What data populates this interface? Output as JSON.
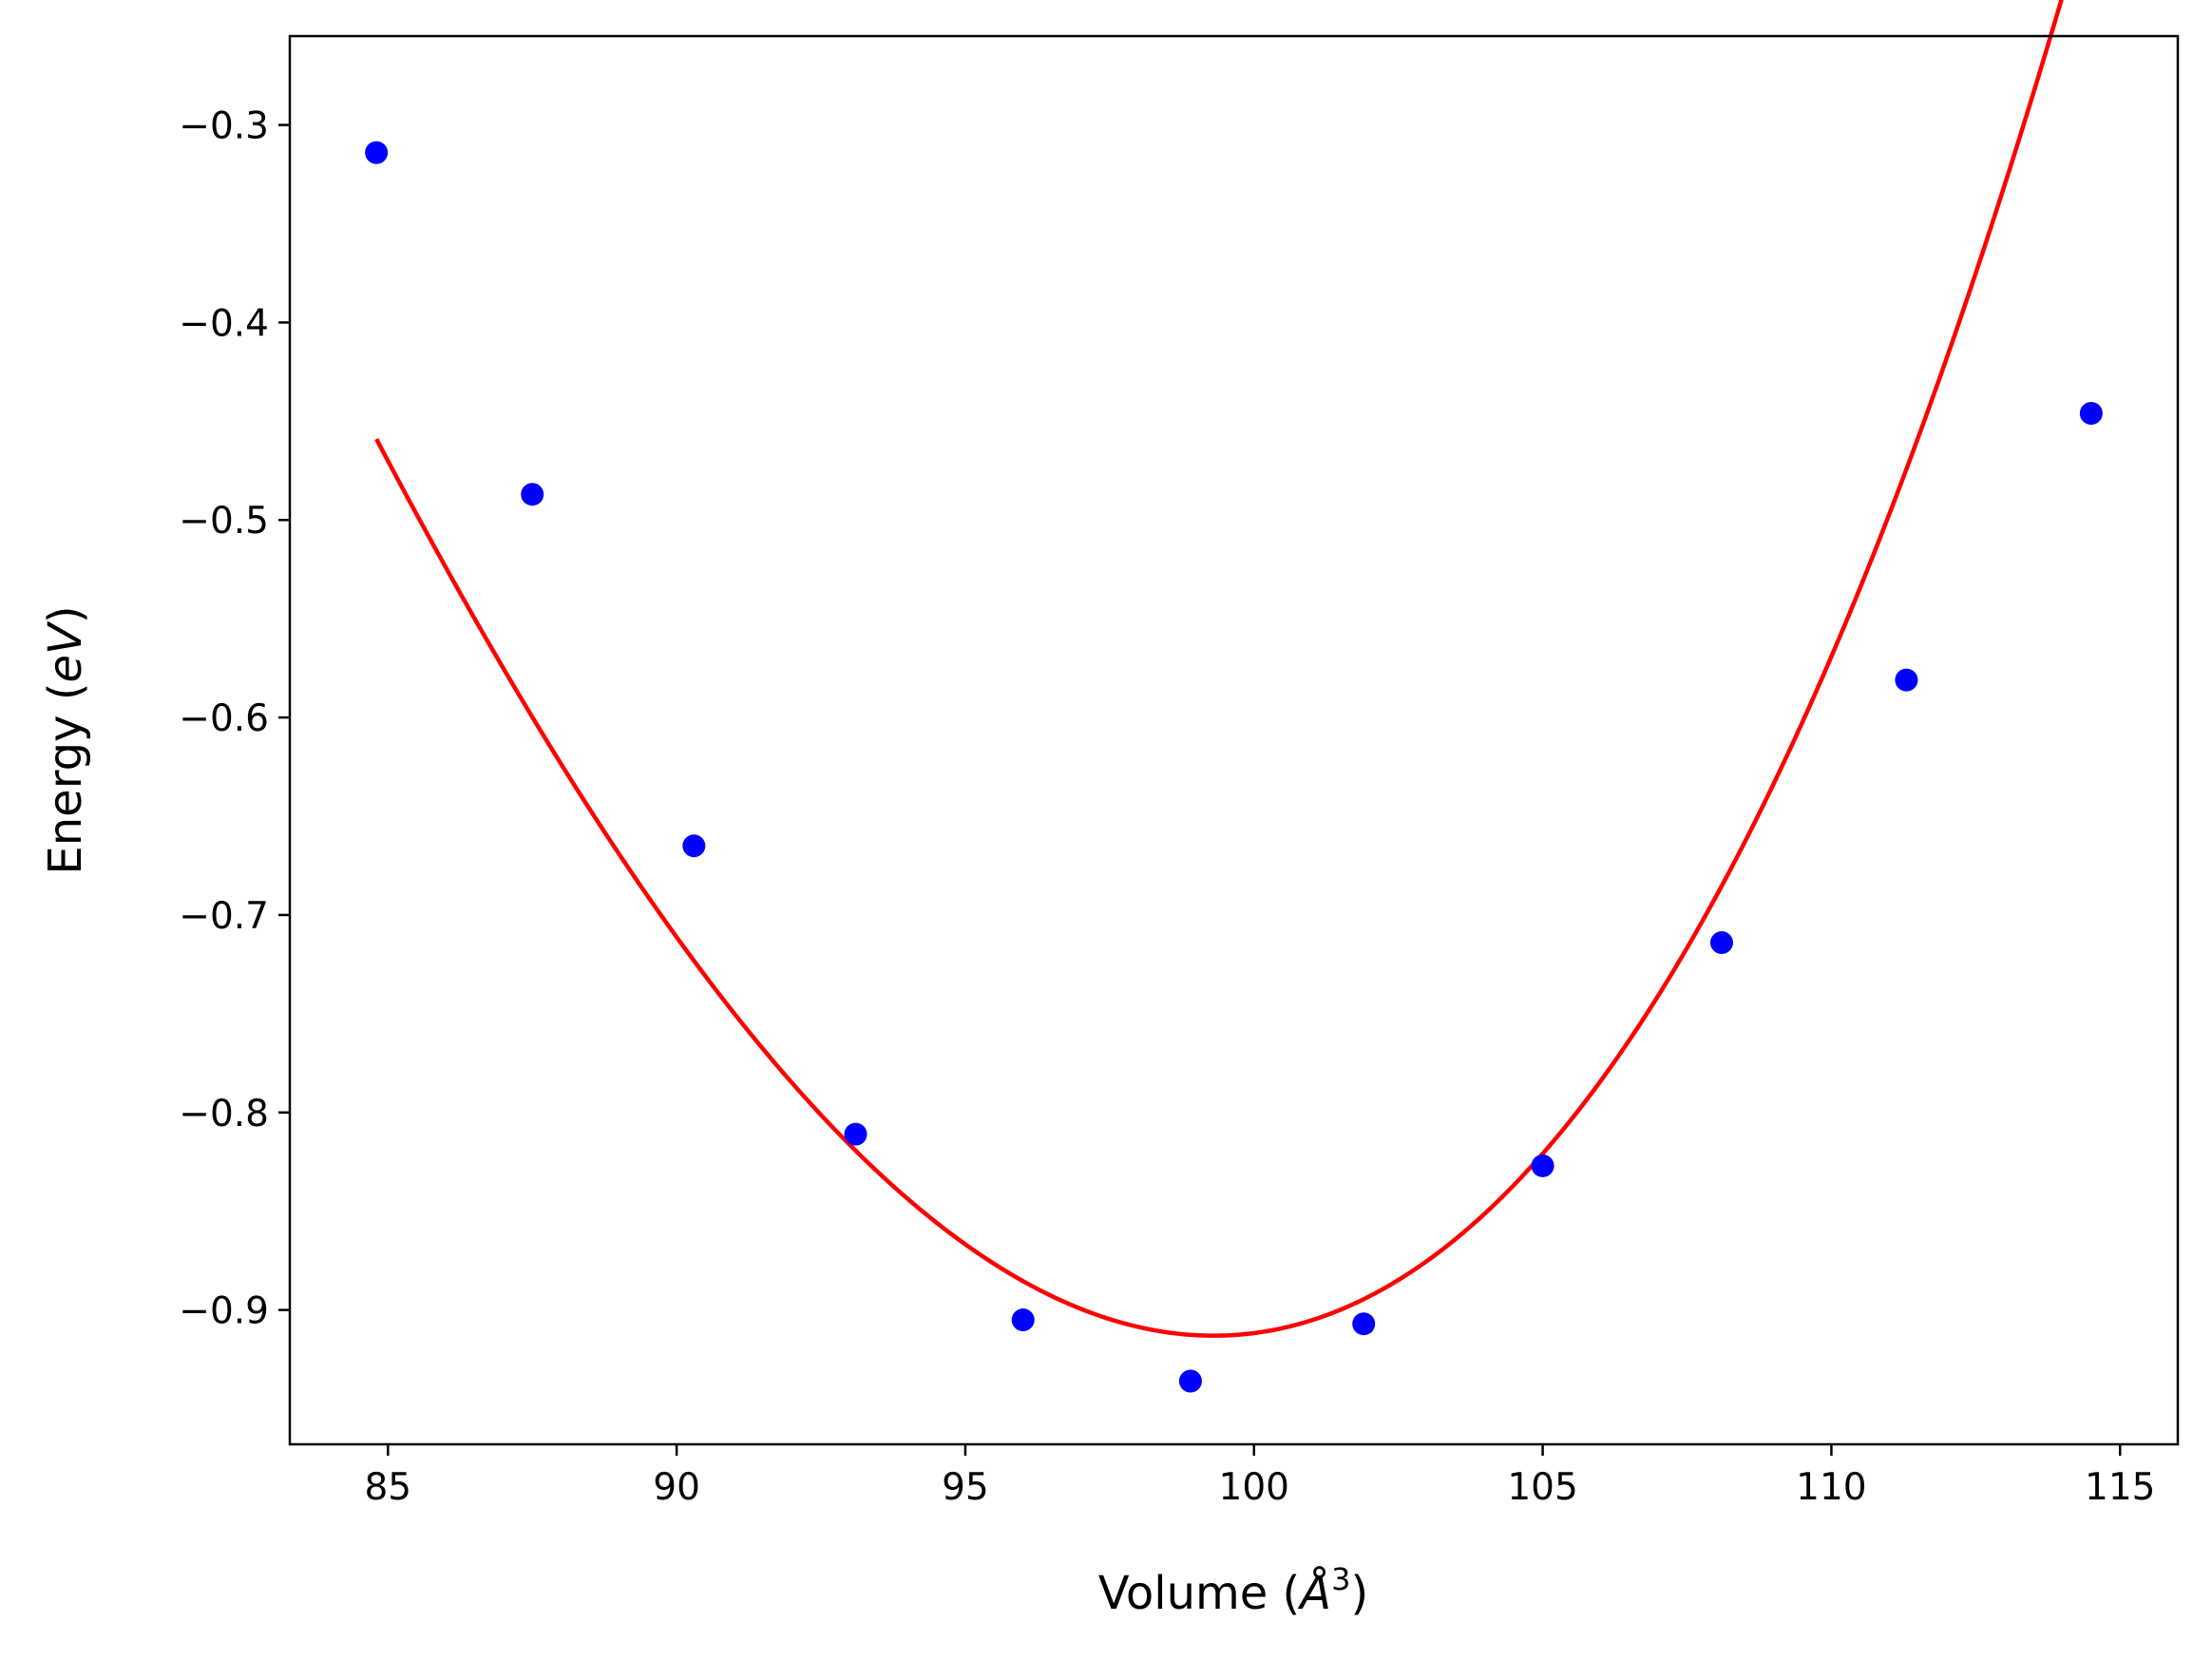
{
  "chart_data": {
    "type": "scatter",
    "title": "",
    "xlabel": "Volume (",
    "xlabel_symbol": "Å",
    "xlabel_exponent": "3",
    "xlabel_close": ")",
    "ylabel": "Energy (",
    "ylabel_italic": "eV",
    "ylabel_close": ")",
    "xlim": [
      83.3,
      116.0
    ],
    "ylim": [
      -0.968,
      -0.255
    ],
    "x_ticks": [
      85,
      90,
      95,
      100,
      105,
      110,
      115
    ],
    "x_tick_labels": [
      "85",
      "90",
      "95",
      "100",
      "105",
      "110",
      "115"
    ],
    "y_ticks": [
      -0.3,
      -0.4,
      -0.5,
      -0.6,
      -0.7,
      -0.8,
      -0.9
    ],
    "y_tick_labels": [
      "−0.3",
      "−0.4",
      "−0.5",
      "−0.6",
      "−0.7",
      "−0.8",
      "−0.9"
    ],
    "grid": false,
    "legend": "none",
    "series": [
      {
        "kind": "points",
        "color": "#0000ff",
        "x": [
          84.8,
          87.5,
          90.3,
          93.1,
          96.0,
          98.9,
          101.9,
          105.0,
          108.1,
          111.3,
          114.5
        ],
        "y": [
          -0.314,
          -0.487,
          -0.665,
          -0.811,
          -0.905,
          -0.936,
          -0.907,
          -0.827,
          -0.714,
          -0.581,
          -0.446
        ]
      },
      {
        "kind": "fit-curve",
        "color": "#ff0000",
        "x_range": [
          84.8,
          114.5
        ],
        "fit": {
          "v0": 99.3,
          "e0": -0.913,
          "a": 0.002645,
          "b": 3.35e-05
        }
      }
    ]
  }
}
